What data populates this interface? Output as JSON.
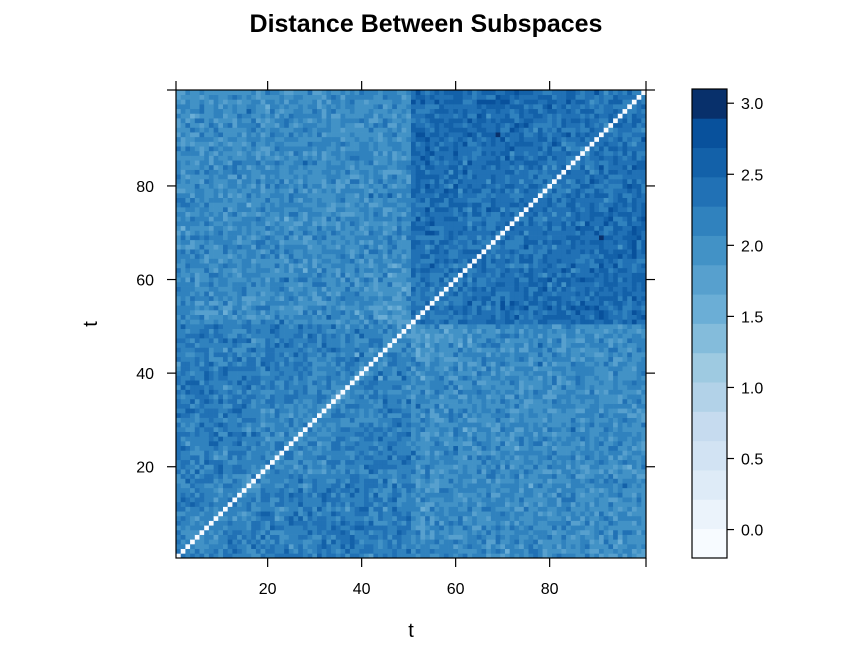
{
  "chart_data": {
    "type": "heatmap",
    "title": "Distance Between Subspaces",
    "xlabel": "t",
    "ylabel": "t",
    "x_range": [
      1,
      100
    ],
    "y_range": [
      1,
      100
    ],
    "x_ticks": [
      20,
      40,
      60,
      80
    ],
    "y_ticks": [
      20,
      40,
      60,
      80
    ],
    "diagonal_value": 0,
    "block_split_t": 50,
    "block_mean_values": {
      "low_t_block": 2.1,
      "high_t_block": 2.3,
      "cross_blocks": 1.9
    },
    "colorbar": {
      "ticks": [
        0.0,
        0.5,
        1.0,
        1.5,
        2.0,
        2.5,
        3.0
      ],
      "tick_labels": [
        "0.0",
        "0.5",
        "1.0",
        "1.5",
        "2.0",
        "2.5",
        "3.0"
      ],
      "range": [
        -0.2,
        3.1
      ],
      "levels": 16,
      "colors": [
        "#f7fbff",
        "#ebf3fb",
        "#deebf7",
        "#d2e3f3",
        "#c6dbef",
        "#b2d2e8",
        "#9ecae1",
        "#84bcdb",
        "#6baed6",
        "#57a0ce",
        "#4292c6",
        "#3082be",
        "#2171b5",
        "#1361a9",
        "#08519c",
        "#08306b"
      ]
    }
  }
}
